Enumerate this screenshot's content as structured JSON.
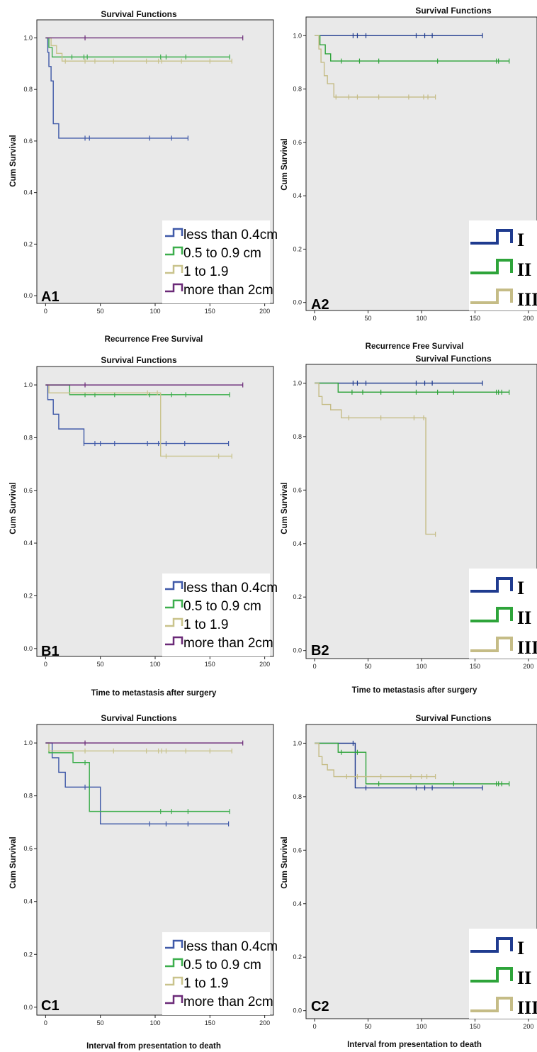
{
  "figure": {
    "colors": {
      "less_than_0_4cm": "#3f59a8",
      "c_0_5_to_0_9": "#3cae4c",
      "c_1_to_1_9": "#c9c38c",
      "more_than_2cm": "#6b2a78",
      "grade_I": "#1f3b8f",
      "grade_II": "#2ea43a",
      "grade_III": "#c5bc86",
      "plot_background": "#e9e9e9"
    }
  },
  "chart_data": [
    {
      "id": "A1",
      "type": "line",
      "step": true,
      "title": "Survival Functions",
      "xlabel": "Recurrence Free Survival",
      "ylabel": "Cum Survival",
      "panel_label": "A1",
      "xlim": [
        -8,
        208
      ],
      "ylim": [
        -0.03,
        1.07
      ],
      "xticks": [
        "0",
        "50",
        "100",
        "150",
        "200"
      ],
      "yticks": [
        "0.0",
        "0.2",
        "0.4",
        "0.6",
        "0.8",
        "1.0"
      ],
      "legend": {
        "style": "size",
        "entries": [
          "less than 0.4cm",
          "0.5 to 0.9 cm",
          "1 to 1.9",
          "more than 2cm"
        ]
      },
      "series": [
        {
          "name": "less than 0.4cm",
          "color": "#3f59a8",
          "steps": [
            [
              0,
              1.0
            ],
            [
              2,
              0.944
            ],
            [
              3,
              0.889
            ],
            [
              5,
              0.833
            ],
            [
              7,
              0.667
            ],
            [
              12,
              0.611
            ]
          ],
          "end": 130,
          "censored": [
            36,
            40,
            95,
            115,
            130
          ]
        },
        {
          "name": "0.5 to 0.9 cm",
          "color": "#3cae4c",
          "steps": [
            [
              0,
              1.0
            ],
            [
              3,
              0.963
            ],
            [
              6,
              0.926
            ]
          ],
          "end": 168,
          "censored": [
            24,
            35,
            38,
            105,
            110,
            128,
            168
          ]
        },
        {
          "name": "1 to 1.9",
          "color": "#c9c38c",
          "steps": [
            [
              0,
              1.0
            ],
            [
              5,
              0.97
            ],
            [
              10,
              0.94
            ],
            [
              15,
              0.91
            ]
          ],
          "end": 170,
          "censored": [
            18,
            36,
            45,
            62,
            92,
            103,
            106,
            124,
            150,
            170
          ]
        },
        {
          "name": "more than 2cm",
          "color": "#6b2a78",
          "steps": [
            [
              0,
              1.0
            ]
          ],
          "end": 180,
          "censored": [
            36,
            180
          ]
        }
      ]
    },
    {
      "id": "A2",
      "type": "line",
      "step": true,
      "title": "Survival Functions",
      "xlabel": "Recurrence Free Survival",
      "ylabel": "Cum Survival",
      "panel_label": "A2",
      "xlim": [
        -8,
        208
      ],
      "ylim": [
        -0.03,
        1.07
      ],
      "xticks": [
        "0",
        "50",
        "100",
        "150",
        "200"
      ],
      "yticks": [
        "0.0",
        "0.2",
        "0.4",
        "0.6",
        "0.8",
        "1.0"
      ],
      "legend": {
        "style": "grade",
        "entries": [
          "I",
          "II",
          "III"
        ]
      },
      "series": [
        {
          "name": "I",
          "color": "#1f3b8f",
          "steps": [
            [
              0,
              1.0
            ]
          ],
          "end": 157,
          "censored": [
            36,
            40,
            48,
            95,
            103,
            110,
            157
          ]
        },
        {
          "name": "II",
          "color": "#2ea43a",
          "steps": [
            [
              0,
              1.0
            ],
            [
              5,
              0.966
            ],
            [
              10,
              0.932
            ],
            [
              15,
              0.905
            ]
          ],
          "end": 182,
          "censored": [
            25,
            42,
            60,
            115,
            170,
            172,
            182
          ]
        },
        {
          "name": "III",
          "color": "#c5bc86",
          "steps": [
            [
              0,
              1.0
            ],
            [
              4,
              0.95
            ],
            [
              6,
              0.9
            ],
            [
              9,
              0.85
            ],
            [
              12,
              0.82
            ],
            [
              18,
              0.77
            ]
          ],
          "end": 113,
          "censored": [
            20,
            32,
            40,
            60,
            88,
            102,
            106,
            113
          ]
        }
      ]
    },
    {
      "id": "B1",
      "type": "line",
      "step": true,
      "title": "Survival Functions",
      "xlabel": "Time to metastasis after surgery",
      "ylabel": "Cum Survival",
      "panel_label": "B1",
      "xlim": [
        -8,
        208
      ],
      "ylim": [
        -0.03,
        1.07
      ],
      "xticks": [
        "0",
        "50",
        "100",
        "150",
        "200"
      ],
      "yticks": [
        "0.0",
        "0.2",
        "0.4",
        "0.6",
        "0.8",
        "1.0"
      ],
      "legend": {
        "style": "size",
        "entries": [
          "less than 0.4cm",
          "0.5 to 0.9 cm",
          "1 to 1.9",
          "more than 2cm"
        ]
      },
      "series": [
        {
          "name": "less than 0.4cm",
          "color": "#3f59a8",
          "steps": [
            [
              0,
              1.0
            ],
            [
              2,
              0.944
            ],
            [
              7,
              0.889
            ],
            [
              12,
              0.833
            ],
            [
              35,
              0.778
            ]
          ],
          "end": 167,
          "censored": [
            35,
            45,
            50,
            63,
            93,
            103,
            110,
            127,
            167
          ]
        },
        {
          "name": "0.5 to 0.9 cm",
          "color": "#3cae4c",
          "steps": [
            [
              0,
              1.0
            ],
            [
              22,
              0.963
            ]
          ],
          "end": 168,
          "censored": [
            36,
            45,
            63,
            95,
            115,
            128,
            168
          ]
        },
        {
          "name": "1 to 1.9",
          "color": "#c9c38c",
          "steps": [
            [
              0,
              1.0
            ],
            [
              3,
              0.97
            ],
            [
              105,
              0.73
            ]
          ],
          "end": 170,
          "censored": [
            93,
            102,
            110,
            158,
            170
          ]
        },
        {
          "name": "more than 2cm",
          "color": "#6b2a78",
          "steps": [
            [
              0,
              1.0
            ]
          ],
          "end": 180,
          "censored": [
            36,
            180
          ]
        }
      ]
    },
    {
      "id": "B2",
      "type": "line",
      "step": true,
      "title": "Survival Functions",
      "xlabel": "Time to metastasis after surgery",
      "ylabel": "Cum Survival",
      "panel_label": "B2",
      "xlim": [
        -8,
        208
      ],
      "ylim": [
        -0.03,
        1.07
      ],
      "xticks": [
        "0",
        "50",
        "100",
        "150",
        "200"
      ],
      "yticks": [
        "0.0",
        "0.2",
        "0.4",
        "0.6",
        "0.8",
        "1.0"
      ],
      "legend": {
        "style": "grade",
        "entries": [
          "I",
          "II",
          "III"
        ]
      },
      "series": [
        {
          "name": "I",
          "color": "#1f3b8f",
          "steps": [
            [
              0,
              1.0
            ]
          ],
          "end": 157,
          "censored": [
            36,
            40,
            48,
            95,
            103,
            110,
            157
          ]
        },
        {
          "name": "II",
          "color": "#2ea43a",
          "steps": [
            [
              0,
              1.0
            ],
            [
              22,
              0.966
            ]
          ],
          "end": 182,
          "censored": [
            35,
            45,
            62,
            95,
            115,
            130,
            170,
            172,
            175,
            182
          ]
        },
        {
          "name": "III",
          "color": "#c5bc86",
          "steps": [
            [
              0,
              1.0
            ],
            [
              4,
              0.95
            ],
            [
              7,
              0.92
            ],
            [
              15,
              0.9
            ],
            [
              25,
              0.87
            ],
            [
              104,
              0.435
            ]
          ],
          "end": 113,
          "censored": [
            32,
            62,
            93,
            102,
            113
          ]
        }
      ]
    },
    {
      "id": "C1",
      "type": "line",
      "step": true,
      "title": "Survival Functions",
      "xlabel": "Interval from presentation to death",
      "ylabel": "Cum Survival",
      "panel_label": "C1",
      "xlim": [
        -8,
        208
      ],
      "ylim": [
        -0.03,
        1.07
      ],
      "xticks": [
        "0",
        "50",
        "100",
        "150",
        "200"
      ],
      "yticks": [
        "0.0",
        "0.2",
        "0.4",
        "0.6",
        "0.8",
        "1.0"
      ],
      "legend": {
        "style": "size",
        "entries": [
          "less than 0.4cm",
          "0.5 to 0.9 cm",
          "1 to 1.9",
          "more than 2cm"
        ]
      },
      "series": [
        {
          "name": "less than 0.4cm",
          "color": "#3f59a8",
          "steps": [
            [
              0,
              1.0
            ],
            [
              6,
              0.944
            ],
            [
              12,
              0.889
            ],
            [
              18,
              0.833
            ],
            [
              50,
              0.694
            ]
          ],
          "end": 167,
          "censored": [
            36,
            40,
            95,
            110,
            130,
            167
          ]
        },
        {
          "name": "0.5 to 0.9 cm",
          "color": "#3cae4c",
          "steps": [
            [
              0,
              1.0
            ],
            [
              3,
              0.963
            ],
            [
              25,
              0.926
            ],
            [
              40,
              0.741
            ]
          ],
          "end": 168,
          "censored": [
            36,
            105,
            115,
            130,
            168
          ]
        },
        {
          "name": "1 to 1.9",
          "color": "#c9c38c",
          "steps": [
            [
              0,
              1.0
            ],
            [
              3,
              0.97
            ]
          ],
          "end": 170,
          "censored": [
            36,
            62,
            92,
            103,
            106,
            110,
            128,
            150,
            170
          ]
        },
        {
          "name": "more than 2cm",
          "color": "#6b2a78",
          "steps": [
            [
              0,
              1.0
            ]
          ],
          "end": 180,
          "censored": [
            36,
            180
          ]
        }
      ]
    },
    {
      "id": "C2",
      "type": "line",
      "step": true,
      "title": "Survival Functions",
      "xlabel": "Interval from presentation to death",
      "ylabel": "Cum Survival",
      "panel_label": "C2",
      "xlim": [
        -8,
        208
      ],
      "ylim": [
        -0.03,
        1.07
      ],
      "xticks": [
        "0",
        "50",
        "100",
        "150",
        "200"
      ],
      "yticks": [
        "0.0",
        "0.2",
        "0.4",
        "0.6",
        "0.8",
        "1.0"
      ],
      "legend": {
        "style": "grade",
        "entries": [
          "I",
          "II",
          "III"
        ]
      },
      "series": [
        {
          "name": "I",
          "color": "#1f3b8f",
          "steps": [
            [
              0,
              1.0
            ],
            [
              38,
              0.833
            ]
          ],
          "end": 157,
          "censored": [
            36,
            48,
            95,
            103,
            110,
            157
          ]
        },
        {
          "name": "II",
          "color": "#2ea43a",
          "steps": [
            [
              0,
              1.0
            ],
            [
              22,
              0.966
            ],
            [
              48,
              0.848
            ]
          ],
          "end": 182,
          "censored": [
            25,
            40,
            60,
            130,
            170,
            172,
            175,
            182
          ]
        },
        {
          "name": "III",
          "color": "#c5bc86",
          "steps": [
            [
              0,
              1.0
            ],
            [
              4,
              0.95
            ],
            [
              7,
              0.92
            ],
            [
              12,
              0.9
            ],
            [
              18,
              0.875
            ]
          ],
          "end": 113,
          "censored": [
            30,
            40,
            62,
            90,
            100,
            105,
            113
          ]
        }
      ]
    }
  ]
}
